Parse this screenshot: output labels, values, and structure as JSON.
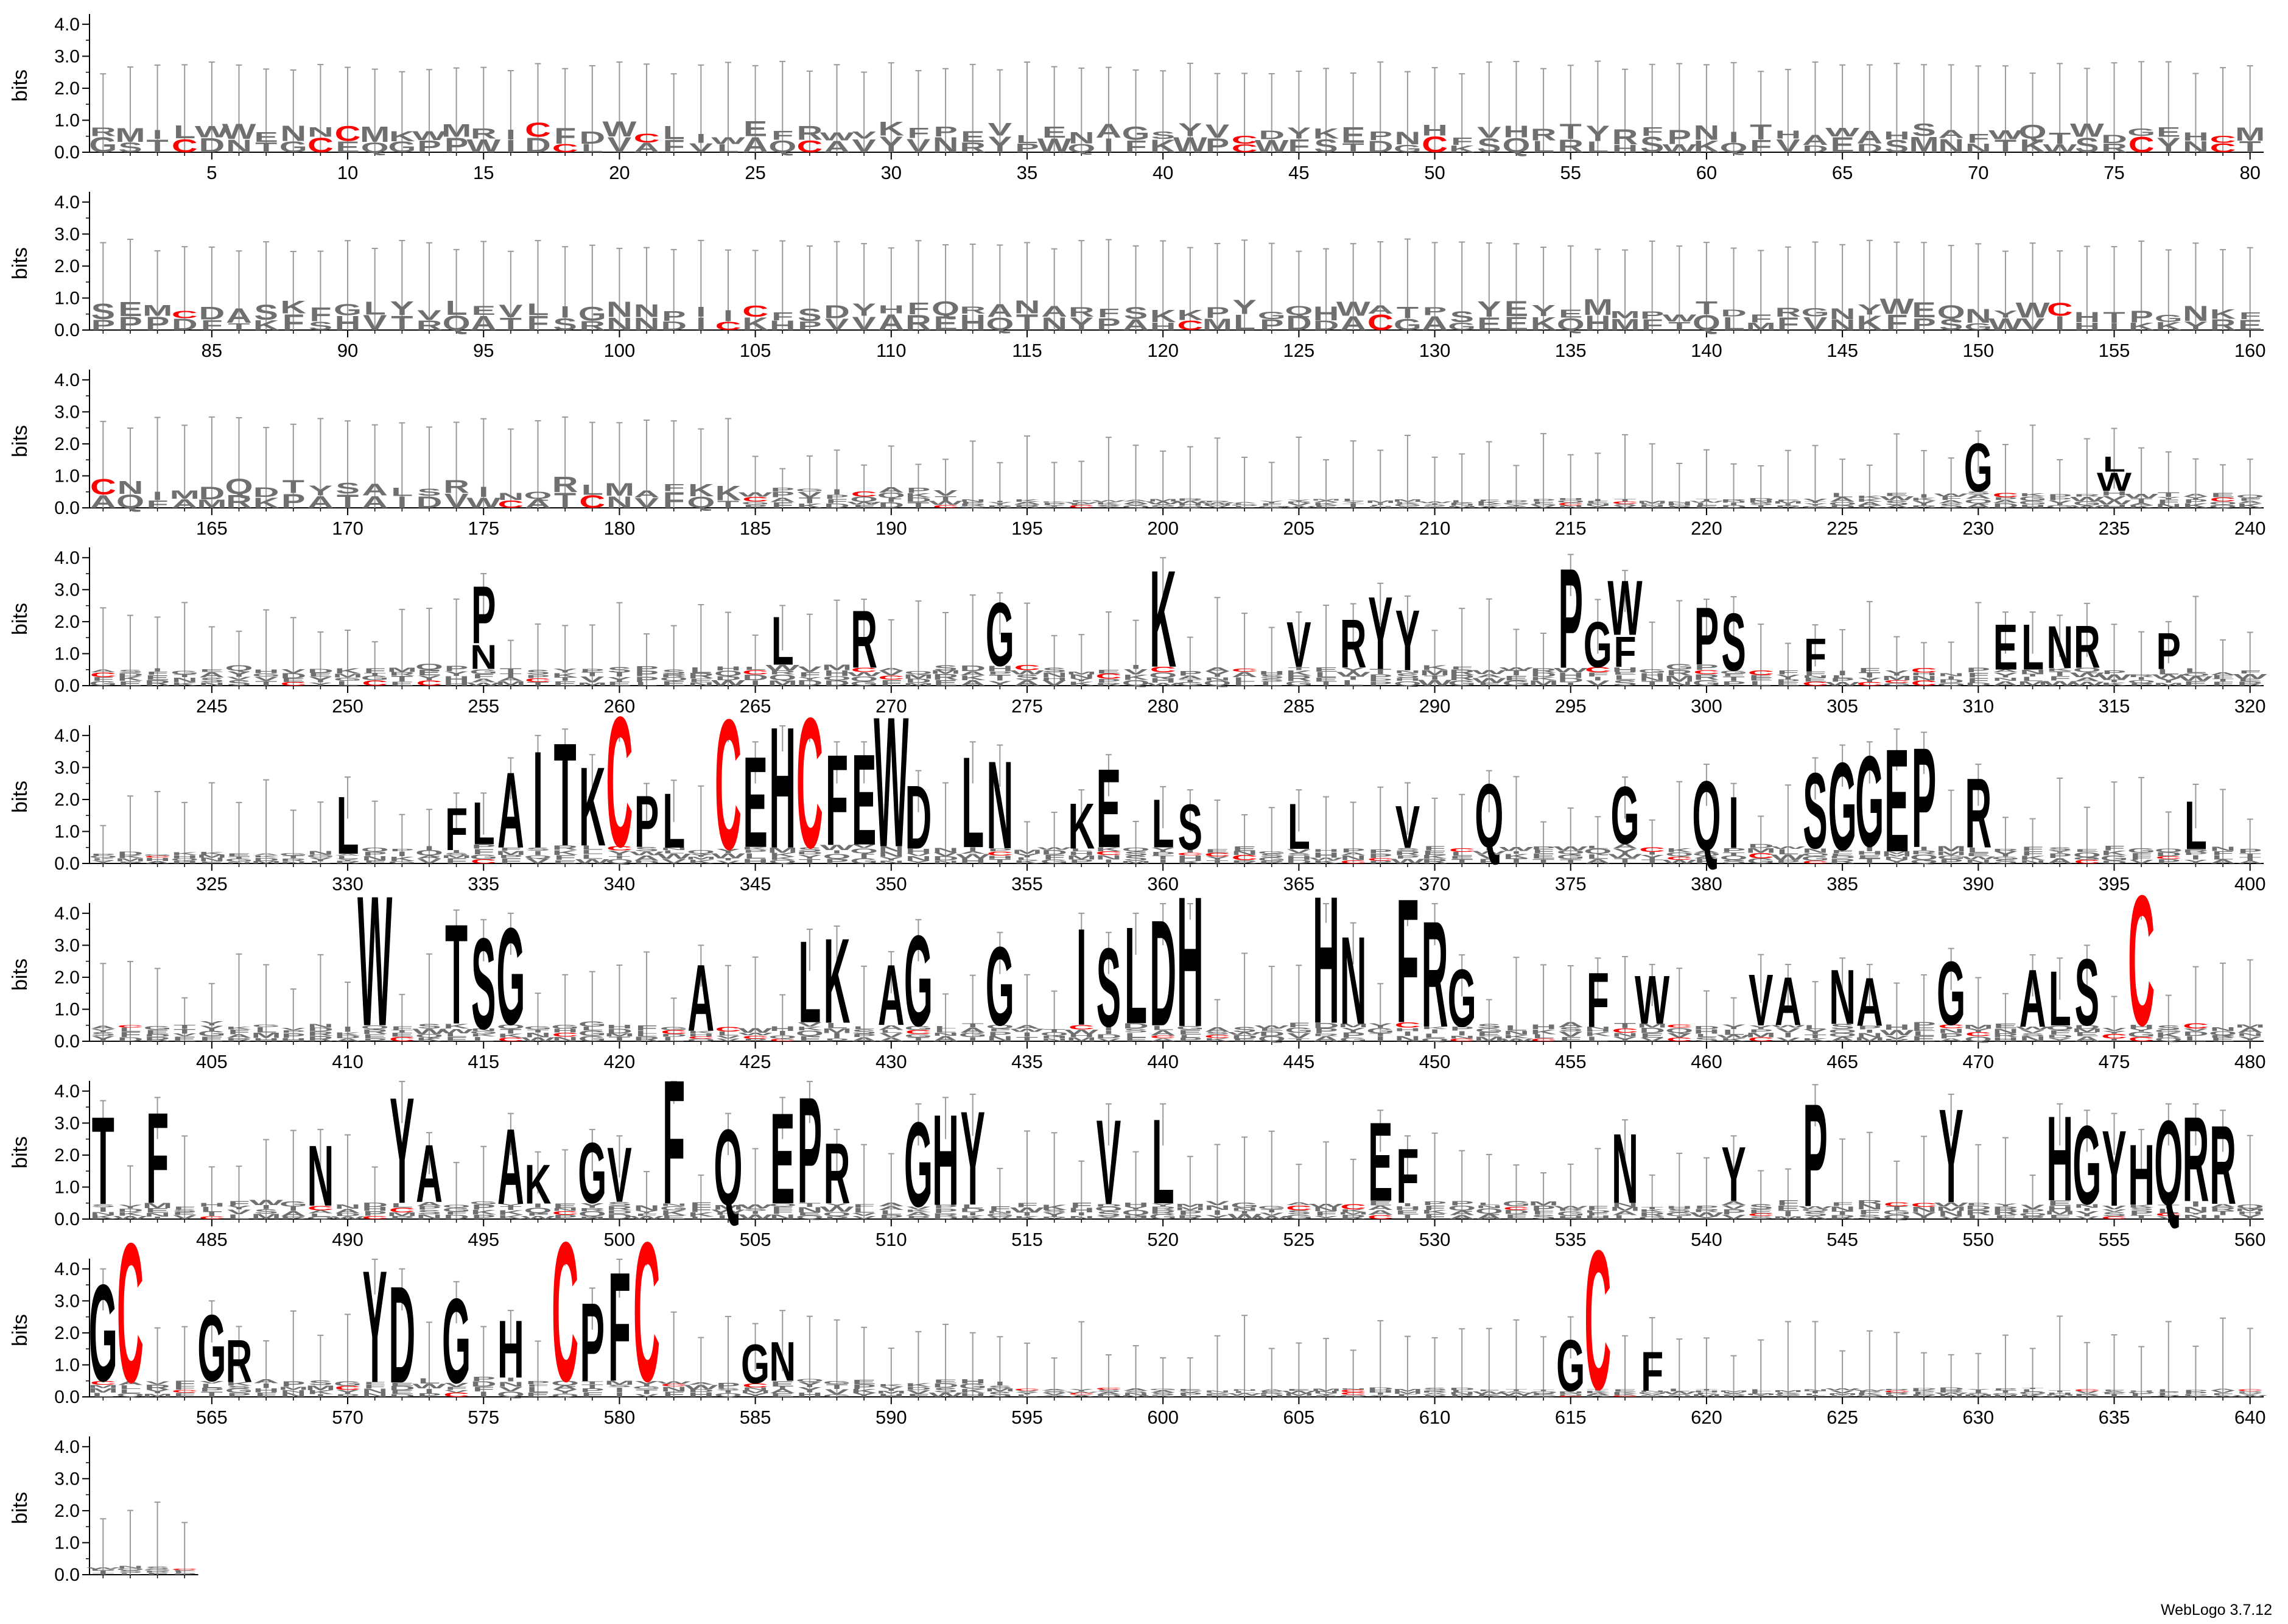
{
  "chart_data": {
    "type": "sequence-logo",
    "ylabel": "bits",
    "ylim": [
      0,
      4.32
    ],
    "yticks": [
      "0.0",
      "1.0",
      "2.0",
      "3.0",
      "4.0"
    ],
    "sequence_length": 644,
    "positions_per_row": 80,
    "xtick_interval": 5,
    "colors": {
      "default": "#000000",
      "cysteine": "#ff0000",
      "errorbar": "#9a9a9a"
    },
    "highlighted_residue": "C",
    "columns": [
      {
        "pos": 230,
        "letters": [
          [
            "G",
            1.6
          ]
        ]
      },
      {
        "pos": 235,
        "letters": [
          [
            "W",
            0.6
          ],
          [
            "L",
            0.5
          ]
        ]
      },
      {
        "pos": 255,
        "letters": [
          [
            "N",
            0.8
          ],
          [
            "P",
            1.9
          ]
        ]
      },
      {
        "pos": 266,
        "letters": [
          [
            "L",
            1.6
          ]
        ]
      },
      {
        "pos": 269,
        "letters": [
          [
            "R",
            1.9
          ]
        ]
      },
      {
        "pos": 274,
        "letters": [
          [
            "G",
            2.1
          ]
        ]
      },
      {
        "pos": 280,
        "letters": [
          [
            "K",
            3.2
          ]
        ]
      },
      {
        "pos": 285,
        "letters": [
          [
            "V",
            1.5
          ]
        ]
      },
      {
        "pos": 287,
        "letters": [
          [
            "R",
            1.6
          ]
        ]
      },
      {
        "pos": 288,
        "letters": [
          [
            "Y",
            2.4
          ]
        ]
      },
      {
        "pos": 289,
        "letters": [
          [
            "Y",
            2.0
          ]
        ]
      },
      {
        "pos": 295,
        "letters": [
          [
            "P",
            3.3
          ]
        ]
      },
      {
        "pos": 296,
        "letters": [
          [
            "G",
            1.5
          ]
        ]
      },
      {
        "pos": 297,
        "letters": [
          [
            "F",
            1.0
          ],
          [
            "W",
            1.8
          ]
        ]
      },
      {
        "pos": 300,
        "letters": [
          [
            "P",
            1.9
          ]
        ]
      },
      {
        "pos": 301,
        "letters": [
          [
            "S",
            1.9
          ]
        ]
      },
      {
        "pos": 304,
        "letters": [
          [
            "F",
            1.1
          ]
        ]
      },
      {
        "pos": 311,
        "letters": [
          [
            "E",
            1.5
          ]
        ]
      },
      {
        "pos": 312,
        "letters": [
          [
            "L",
            1.5
          ]
        ]
      },
      {
        "pos": 313,
        "letters": [
          [
            "N",
            1.4
          ]
        ]
      },
      {
        "pos": 314,
        "letters": [
          [
            "R",
            1.4
          ]
        ]
      },
      {
        "pos": 317,
        "letters": [
          [
            "P",
            1.2
          ]
        ]
      },
      {
        "pos": 330,
        "letters": [
          [
            "L",
            1.9
          ]
        ]
      },
      {
        "pos": 334,
        "letters": [
          [
            "F",
            1.4
          ]
        ]
      },
      {
        "pos": 335,
        "letters": [
          [
            "L",
            1.4
          ]
        ]
      },
      {
        "pos": 336,
        "letters": [
          [
            "A",
            2.5
          ]
        ]
      },
      {
        "pos": 337,
        "letters": [
          [
            "I",
            3.2
          ]
        ]
      },
      {
        "pos": 338,
        "letters": [
          [
            "T",
            3.4
          ]
        ]
      },
      {
        "pos": 339,
        "letters": [
          [
            "K",
            2.6
          ]
        ]
      },
      {
        "pos": 340,
        "letters": [
          [
            "C",
            4.3
          ]
        ]
      },
      {
        "pos": 341,
        "letters": [
          [
            "P",
            1.7
          ]
        ]
      },
      {
        "pos": 342,
        "letters": [
          [
            "L",
            1.8
          ]
        ]
      },
      {
        "pos": 344,
        "letters": [
          [
            "C",
            4.3
          ]
        ]
      },
      {
        "pos": 345,
        "letters": [
          [
            "E",
            3.0
          ]
        ]
      },
      {
        "pos": 346,
        "letters": [
          [
            "H",
            4.0
          ]
        ]
      },
      {
        "pos": 347,
        "letters": [
          [
            "C",
            4.3
          ]
        ]
      },
      {
        "pos": 348,
        "letters": [
          [
            "F",
            3.0
          ]
        ]
      },
      {
        "pos": 349,
        "letters": [
          [
            "E",
            3.0
          ]
        ]
      },
      {
        "pos": 350,
        "letters": [
          [
            "W",
            4.3
          ]
        ]
      },
      {
        "pos": 351,
        "letters": [
          [
            "D",
            2.1
          ]
        ]
      },
      {
        "pos": 353,
        "letters": [
          [
            "L",
            3.0
          ]
        ]
      },
      {
        "pos": 354,
        "letters": [
          [
            "N",
            2.9
          ]
        ]
      },
      {
        "pos": 357,
        "letters": [
          [
            "K",
            1.5
          ]
        ]
      },
      {
        "pos": 358,
        "letters": [
          [
            "E",
            2.6
          ]
        ]
      },
      {
        "pos": 360,
        "letters": [
          [
            "L",
            1.6
          ]
        ]
      },
      {
        "pos": 361,
        "letters": [
          [
            "S",
            1.5
          ]
        ]
      },
      {
        "pos": 365,
        "letters": [
          [
            "L",
            1.5
          ]
        ]
      },
      {
        "pos": 369,
        "letters": [
          [
            "V",
            1.4
          ]
        ]
      },
      {
        "pos": 372,
        "letters": [
          [
            "Q",
            2.1
          ]
        ]
      },
      {
        "pos": 377,
        "letters": [
          [
            "G",
            1.9
          ]
        ]
      },
      {
        "pos": 380,
        "letters": [
          [
            "Q",
            2.3
          ]
        ]
      },
      {
        "pos": 381,
        "letters": [
          [
            "I",
            1.7
          ]
        ]
      },
      {
        "pos": 384,
        "letters": [
          [
            "S",
            2.5
          ]
        ]
      },
      {
        "pos": 385,
        "letters": [
          [
            "G",
            2.9
          ]
        ]
      },
      {
        "pos": 386,
        "letters": [
          [
            "G",
            3.0
          ]
        ]
      },
      {
        "pos": 387,
        "letters": [
          [
            "E",
            3.4
          ]
        ]
      },
      {
        "pos": 388,
        "letters": [
          [
            "P",
            3.3
          ]
        ]
      },
      {
        "pos": 390,
        "letters": [
          [
            "R",
            2.3
          ]
        ]
      },
      {
        "pos": 398,
        "letters": [
          [
            "L",
            1.6
          ]
        ]
      },
      {
        "pos": 411,
        "letters": [
          [
            "W",
            4.3
          ]
        ]
      },
      {
        "pos": 414,
        "letters": [
          [
            "T",
            3.3
          ]
        ]
      },
      {
        "pos": 415,
        "letters": [
          [
            "S",
            3.0
          ]
        ]
      },
      {
        "pos": 416,
        "letters": [
          [
            "G",
            3.2
          ]
        ]
      },
      {
        "pos": 423,
        "letters": [
          [
            "A",
            2.2
          ]
        ]
      },
      {
        "pos": 427,
        "letters": [
          [
            "L",
            2.7
          ]
        ]
      },
      {
        "pos": 428,
        "letters": [
          [
            "K",
            2.8
          ]
        ]
      },
      {
        "pos": 430,
        "letters": [
          [
            "A",
            2.0
          ]
        ]
      },
      {
        "pos": 431,
        "letters": [
          [
            "G",
            3.0
          ]
        ]
      },
      {
        "pos": 434,
        "letters": [
          [
            "G",
            2.6
          ]
        ]
      },
      {
        "pos": 437,
        "letters": [
          [
            "I",
            3.2
          ]
        ]
      },
      {
        "pos": 438,
        "letters": [
          [
            "S",
            2.6
          ]
        ]
      },
      {
        "pos": 439,
        "letters": [
          [
            "L",
            3.2
          ]
        ]
      },
      {
        "pos": 440,
        "letters": [
          [
            "D",
            3.5
          ]
        ]
      },
      {
        "pos": 441,
        "letters": [
          [
            "H",
            4.3
          ]
        ]
      },
      {
        "pos": 446,
        "letters": [
          [
            "H",
            4.2
          ]
        ]
      },
      {
        "pos": 447,
        "letters": [
          [
            "N",
            2.9
          ]
        ]
      },
      {
        "pos": 449,
        "letters": [
          [
            "F",
            4.1
          ]
        ]
      },
      {
        "pos": 450,
        "letters": [
          [
            "R",
            3.5
          ]
        ]
      },
      {
        "pos": 451,
        "letters": [
          [
            "G",
            1.9
          ]
        ]
      },
      {
        "pos": 456,
        "letters": [
          [
            "F",
            1.8
          ]
        ]
      },
      {
        "pos": 458,
        "letters": [
          [
            "W",
            1.6
          ]
        ]
      },
      {
        "pos": 462,
        "letters": [
          [
            "V",
            1.7
          ]
        ]
      },
      {
        "pos": 463,
        "letters": [
          [
            "A",
            1.6
          ]
        ]
      },
      {
        "pos": 465,
        "letters": [
          [
            "N",
            1.8
          ]
        ]
      },
      {
        "pos": 466,
        "letters": [
          [
            "A",
            1.6
          ]
        ]
      },
      {
        "pos": 469,
        "letters": [
          [
            "G",
            2.1
          ]
        ]
      },
      {
        "pos": 472,
        "letters": [
          [
            "A",
            1.9
          ]
        ]
      },
      {
        "pos": 473,
        "letters": [
          [
            "L",
            1.8
          ]
        ]
      },
      {
        "pos": 474,
        "letters": [
          [
            "S",
            2.2
          ]
        ]
      },
      {
        "pos": 476,
        "letters": [
          [
            "C",
            4.3
          ]
        ]
      },
      {
        "pos": 481,
        "letters": [
          [
            "T",
            2.9
          ]
        ]
      },
      {
        "pos": 483,
        "letters": [
          [
            "F",
            3.0
          ]
        ]
      },
      {
        "pos": 489,
        "letters": [
          [
            "N",
            2.0
          ]
        ]
      },
      {
        "pos": 492,
        "letters": [
          [
            "Y",
            3.5
          ]
        ]
      },
      {
        "pos": 493,
        "letters": [
          [
            "A",
            1.9
          ]
        ]
      },
      {
        "pos": 496,
        "letters": [
          [
            "A",
            2.5
          ]
        ]
      },
      {
        "pos": 497,
        "letters": [
          [
            "K",
            1.3
          ]
        ]
      },
      {
        "pos": 499,
        "letters": [
          [
            "G",
            2.0
          ]
        ]
      },
      {
        "pos": 500,
        "letters": [
          [
            "V",
            1.8
          ]
        ]
      },
      {
        "pos": 502,
        "letters": [
          [
            "F",
            4.1
          ]
        ]
      },
      {
        "pos": 504,
        "letters": [
          [
            "Q",
            2.5
          ]
        ]
      },
      {
        "pos": 506,
        "letters": [
          [
            "E",
            3.0
          ]
        ]
      },
      {
        "pos": 507,
        "letters": [
          [
            "P",
            3.5
          ]
        ]
      },
      {
        "pos": 508,
        "letters": [
          [
            "R",
            2.0
          ]
        ]
      },
      {
        "pos": 511,
        "letters": [
          [
            "G",
            2.8
          ]
        ]
      },
      {
        "pos": 512,
        "letters": [
          [
            "H",
            3.0
          ]
        ]
      },
      {
        "pos": 513,
        "letters": [
          [
            "Y",
            3.1
          ]
        ]
      },
      {
        "pos": 518,
        "letters": [
          [
            "V",
            2.8
          ]
        ]
      },
      {
        "pos": 520,
        "letters": [
          [
            "L",
            2.8
          ]
        ]
      },
      {
        "pos": 528,
        "letters": [
          [
            "E",
            2.6
          ]
        ]
      },
      {
        "pos": 529,
        "letters": [
          [
            "F",
            1.8
          ]
        ]
      },
      {
        "pos": 537,
        "letters": [
          [
            "N",
            2.3
          ]
        ]
      },
      {
        "pos": 541,
        "letters": [
          [
            "Y",
            1.8
          ]
        ]
      },
      {
        "pos": 544,
        "letters": [
          [
            "P",
            3.4
          ]
        ]
      },
      {
        "pos": 549,
        "letters": [
          [
            "Y",
            3.1
          ]
        ]
      },
      {
        "pos": 553,
        "letters": [
          [
            "H",
            2.8
          ]
        ]
      },
      {
        "pos": 554,
        "letters": [
          [
            "G",
            2.6
          ]
        ]
      },
      {
        "pos": 555,
        "letters": [
          [
            "Y",
            2.5
          ]
        ]
      },
      {
        "pos": 556,
        "letters": [
          [
            "H",
            2.0
          ]
        ]
      },
      {
        "pos": 557,
        "letters": [
          [
            "Q",
            2.8
          ]
        ]
      },
      {
        "pos": 558,
        "letters": [
          [
            "R",
            2.8
          ]
        ]
      },
      {
        "pos": 559,
        "letters": [
          [
            "R",
            2.6
          ]
        ]
      },
      {
        "pos": 561,
        "letters": [
          [
            "G",
            3.2
          ]
        ]
      },
      {
        "pos": 562,
        "letters": [
          [
            "C",
            4.6
          ]
        ]
      },
      {
        "pos": 565,
        "letters": [
          [
            "G",
            2.2
          ]
        ]
      },
      {
        "pos": 566,
        "letters": [
          [
            "R",
            1.4
          ]
        ]
      },
      {
        "pos": 571,
        "letters": [
          [
            "Y",
            3.7
          ]
        ]
      },
      {
        "pos": 572,
        "letters": [
          [
            "D",
            3.2
          ]
        ]
      },
      {
        "pos": 574,
        "letters": [
          [
            "G",
            2.8
          ]
        ]
      },
      {
        "pos": 576,
        "letters": [
          [
            "H",
            1.9
          ]
        ]
      },
      {
        "pos": 578,
        "letters": [
          [
            "C",
            4.6
          ]
        ]
      },
      {
        "pos": 579,
        "letters": [
          [
            "P",
            2.6
          ]
        ]
      },
      {
        "pos": 580,
        "letters": [
          [
            "F",
            3.6
          ]
        ]
      },
      {
        "pos": 581,
        "letters": [
          [
            "C",
            4.6
          ]
        ]
      },
      {
        "pos": 585,
        "letters": [
          [
            "G",
            1.3
          ]
        ]
      },
      {
        "pos": 586,
        "letters": [
          [
            "N",
            1.3
          ]
        ]
      },
      {
        "pos": 615,
        "letters": [
          [
            "G",
            1.7
          ]
        ]
      },
      {
        "pos": 616,
        "letters": [
          [
            "C",
            4.6
          ]
        ]
      },
      {
        "pos": 618,
        "letters": [
          [
            "F",
            1.3
          ]
        ]
      }
    ]
  },
  "footer": {
    "credit": "WebLogo 3.7.12"
  }
}
